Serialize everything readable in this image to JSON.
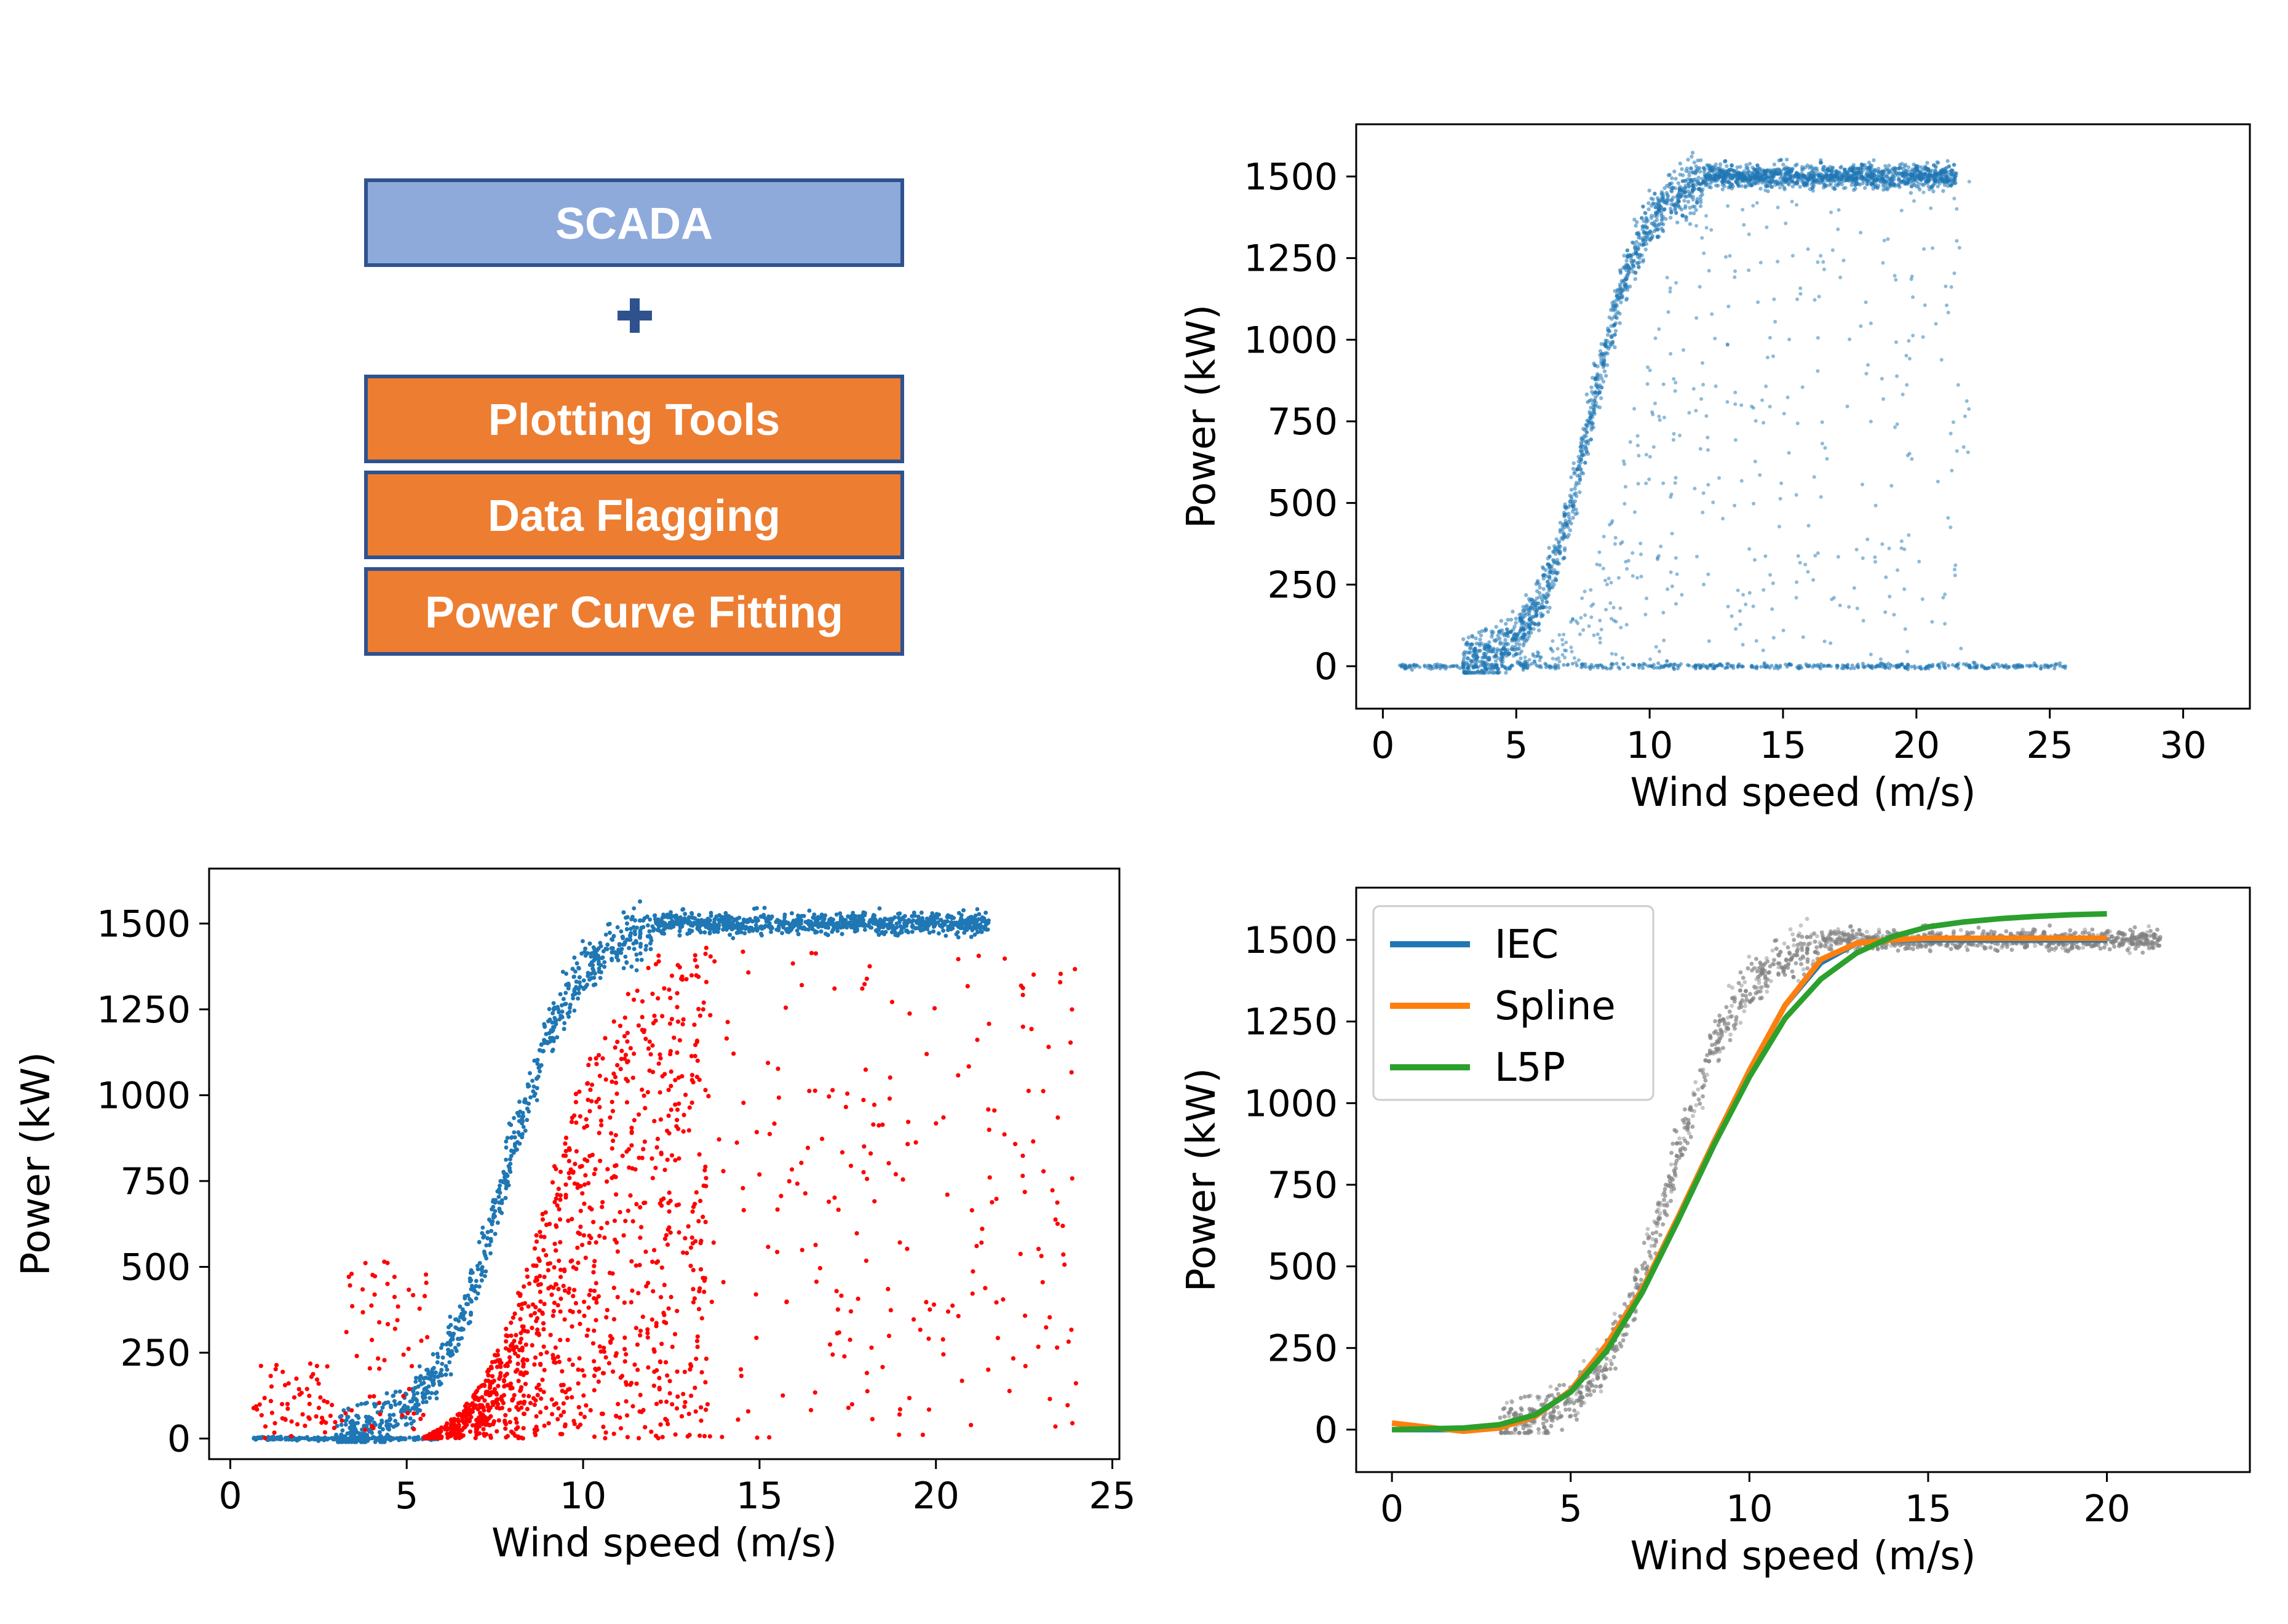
{
  "stack": {
    "items": [
      {
        "label": "SCADA",
        "fill": "#8eaadb",
        "stroke": "#2f528f"
      },
      {
        "label": "Plotting Tools",
        "fill": "#ed7d31",
        "stroke": "#2f528f"
      },
      {
        "label": "Data Flagging",
        "fill": "#ed7d31",
        "stroke": "#2f528f"
      },
      {
        "label": "Power Curve Fitting",
        "fill": "#ed7d31",
        "stroke": "#2f528f"
      }
    ],
    "plus_icon": "plus-icon",
    "plus_color": "#2f528f"
  },
  "chart_data": [
    {
      "type": "scatter",
      "xlabel": "Wind speed (m/s)",
      "ylabel": "Power (kW)",
      "xlim": [
        -1,
        32.5
      ],
      "ylim": [
        -130,
        1660
      ],
      "xticks": [
        0,
        5,
        10,
        15,
        20,
        25,
        30
      ],
      "yticks": [
        0,
        250,
        500,
        750,
        1000,
        1250,
        1500
      ],
      "grid": false,
      "series": [
        {
          "color": "#1f77b4",
          "description_points": [
            [
              0.5,
              0
            ],
            [
              3,
              30
            ],
            [
              4,
              120
            ],
            [
              5,
              280
            ],
            [
              6,
              460
            ],
            [
              7,
              680
            ],
            [
              8,
              900
            ],
            [
              9,
              1120
            ],
            [
              10,
              1320
            ],
            [
              11,
              1450
            ],
            [
              12,
              1500
            ],
            [
              15,
              1505
            ],
            [
              20,
              1500
            ],
            [
              21.5,
              1500
            ],
            [
              25.5,
              0
            ]
          ]
        }
      ]
    },
    {
      "type": "scatter",
      "xlabel": "Wind speed (m/s)",
      "ylabel": "Power (kW)",
      "xlim": [
        -0.6,
        25.2
      ],
      "ylim": [
        -60,
        1660
      ],
      "xticks": [
        0,
        5,
        10,
        15,
        20,
        25
      ],
      "yticks": [
        0,
        250,
        500,
        750,
        1000,
        1250,
        1500
      ],
      "grid": false,
      "series": [
        {
          "color": "#1f77b4",
          "label_role": "kept"
        },
        {
          "color": "#ff0000",
          "label_role": "flagged"
        }
      ]
    },
    {
      "type": "line",
      "xlabel": "Wind speed (m/s)",
      "ylabel": "Power (kW)",
      "xlim": [
        -1,
        24
      ],
      "ylim": [
        -130,
        1660
      ],
      "xticks": [
        0,
        5,
        10,
        15,
        20
      ],
      "yticks": [
        0,
        250,
        500,
        750,
        1000,
        1250,
        1500
      ],
      "grid": false,
      "legend": "top-left",
      "background_scatter_color": "#808080",
      "x": [
        0,
        2,
        3,
        4,
        5,
        6,
        7,
        8,
        9,
        10,
        11,
        12,
        13,
        14,
        15,
        16,
        17,
        18,
        19,
        20
      ],
      "series": [
        {
          "name": "IEC",
          "color": "#1f77b4",
          "values": [
            0,
            0,
            5,
            40,
            120,
            260,
            420,
            640,
            870,
            1100,
            1300,
            1430,
            1490,
            1500,
            1500,
            1500,
            1500,
            1500,
            1500,
            1500
          ]
        },
        {
          "name": "Spline",
          "color": "#ff7f0e",
          "values": [
            20,
            -5,
            5,
            40,
            120,
            260,
            430,
            650,
            880,
            1100,
            1300,
            1440,
            1490,
            1500,
            1505,
            1505,
            1505,
            1505,
            1505,
            1505
          ]
        },
        {
          "name": "L5P",
          "color": "#2ca02c",
          "values": [
            0,
            5,
            15,
            45,
            115,
            240,
            420,
            640,
            870,
            1080,
            1260,
            1380,
            1460,
            1510,
            1540,
            1555,
            1565,
            1572,
            1577,
            1580
          ]
        }
      ]
    }
  ]
}
